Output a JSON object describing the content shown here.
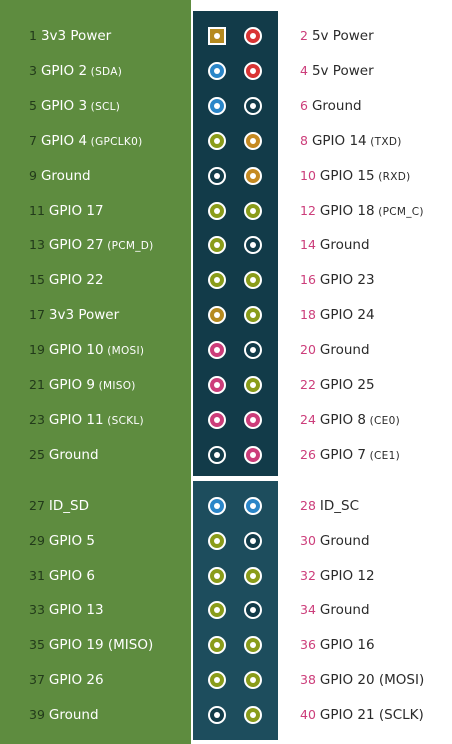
{
  "colors": {
    "power3v3": "#b58a1f",
    "power5v": "#d93434",
    "ground": "#123b49",
    "gpio": "#8a9c1a",
    "i2c": "#2b86c8",
    "spi": "#cc3d7a",
    "uart": "#c58a22",
    "idsd": "#2b86c8"
  },
  "pins": [
    {
      "num": "1",
      "name": "3v3 Power",
      "sub": "",
      "type": "power3v3",
      "side": "left",
      "row": 0,
      "square": true
    },
    {
      "num": "2",
      "name": "5v Power",
      "sub": "",
      "type": "power5v",
      "side": "right",
      "row": 0
    },
    {
      "num": "3",
      "name": "GPIO 2",
      "sub": "(SDA)",
      "type": "i2c",
      "side": "left",
      "row": 1
    },
    {
      "num": "4",
      "name": "5v Power",
      "sub": "",
      "type": "power5v",
      "side": "right",
      "row": 1
    },
    {
      "num": "5",
      "name": "GPIO 3",
      "sub": "(SCL)",
      "type": "i2c",
      "side": "left",
      "row": 2
    },
    {
      "num": "6",
      "name": "Ground",
      "sub": "",
      "type": "ground",
      "side": "right",
      "row": 2
    },
    {
      "num": "7",
      "name": "GPIO 4",
      "sub": "(GPCLK0)",
      "type": "gpio",
      "side": "left",
      "row": 3
    },
    {
      "num": "8",
      "name": "GPIO 14",
      "sub": "(TXD)",
      "type": "uart",
      "side": "right",
      "row": 3
    },
    {
      "num": "9",
      "name": "Ground",
      "sub": "",
      "type": "ground",
      "side": "left",
      "row": 4
    },
    {
      "num": "10",
      "name": "GPIO 15",
      "sub": "(RXD)",
      "type": "uart",
      "side": "right",
      "row": 4
    },
    {
      "num": "11",
      "name": "GPIO 17",
      "sub": "",
      "type": "gpio",
      "side": "left",
      "row": 5
    },
    {
      "num": "12",
      "name": "GPIO 18",
      "sub": "(PCM_C)",
      "type": "gpio",
      "side": "right",
      "row": 5
    },
    {
      "num": "13",
      "name": "GPIO 27",
      "sub": "(PCM_D)",
      "type": "gpio",
      "side": "left",
      "row": 6
    },
    {
      "num": "14",
      "name": "Ground",
      "sub": "",
      "type": "ground",
      "side": "right",
      "row": 6
    },
    {
      "num": "15",
      "name": "GPIO 22",
      "sub": "",
      "type": "gpio",
      "side": "left",
      "row": 7
    },
    {
      "num": "16",
      "name": "GPIO 23",
      "sub": "",
      "type": "gpio",
      "side": "right",
      "row": 7
    },
    {
      "num": "17",
      "name": "3v3 Power",
      "sub": "",
      "type": "power3v3",
      "side": "left",
      "row": 8
    },
    {
      "num": "18",
      "name": "GPIO 24",
      "sub": "",
      "type": "gpio",
      "side": "right",
      "row": 8
    },
    {
      "num": "19",
      "name": "GPIO 10",
      "sub": "(MOSI)",
      "type": "spi",
      "side": "left",
      "row": 9
    },
    {
      "num": "20",
      "name": "Ground",
      "sub": "",
      "type": "ground",
      "side": "right",
      "row": 9
    },
    {
      "num": "21",
      "name": "GPIO 9",
      "sub": "(MISO)",
      "type": "spi",
      "side": "left",
      "row": 10
    },
    {
      "num": "22",
      "name": "GPIO 25",
      "sub": "",
      "type": "gpio",
      "side": "right",
      "row": 10
    },
    {
      "num": "23",
      "name": "GPIO 11",
      "sub": "(SCKL)",
      "type": "spi",
      "side": "left",
      "row": 11
    },
    {
      "num": "24",
      "name": "GPIO 8",
      "sub": "(CE0)",
      "type": "spi",
      "side": "right",
      "row": 11
    },
    {
      "num": "25",
      "name": "Ground",
      "sub": "",
      "type": "ground",
      "side": "left",
      "row": 12
    },
    {
      "num": "26",
      "name": "GPIO 7",
      "sub": "(CE1)",
      "type": "spi",
      "side": "right",
      "row": 12
    },
    {
      "num": "27",
      "name": "ID_SD",
      "sub": "",
      "type": "idsd",
      "side": "left",
      "row": 13
    },
    {
      "num": "28",
      "name": "ID_SC",
      "sub": "",
      "type": "idsd",
      "side": "right",
      "row": 13
    },
    {
      "num": "29",
      "name": "GPIO 5",
      "sub": "",
      "type": "gpio",
      "side": "left",
      "row": 14
    },
    {
      "num": "30",
      "name": "Ground",
      "sub": "",
      "type": "ground",
      "side": "right",
      "row": 14
    },
    {
      "num": "31",
      "name": "GPIO 6",
      "sub": "",
      "type": "gpio",
      "side": "left",
      "row": 15
    },
    {
      "num": "32",
      "name": "GPIO 12",
      "sub": "",
      "type": "gpio",
      "side": "right",
      "row": 15
    },
    {
      "num": "33",
      "name": "GPIO 13",
      "sub": "",
      "type": "gpio",
      "side": "left",
      "row": 16
    },
    {
      "num": "34",
      "name": "Ground",
      "sub": "",
      "type": "ground",
      "side": "right",
      "row": 16
    },
    {
      "num": "35",
      "name": "GPIO 19 (MISO)",
      "sub": "",
      "type": "gpio",
      "side": "left",
      "row": 17
    },
    {
      "num": "36",
      "name": "GPIO 16",
      "sub": "",
      "type": "gpio",
      "side": "right",
      "row": 17
    },
    {
      "num": "37",
      "name": "GPIO 26",
      "sub": "",
      "type": "gpio",
      "side": "left",
      "row": 18
    },
    {
      "num": "38",
      "name": "GPIO 20 (MOSI)",
      "sub": "",
      "type": "gpio",
      "side": "right",
      "row": 18
    },
    {
      "num": "39",
      "name": "Ground",
      "sub": "",
      "type": "ground",
      "side": "left",
      "row": 19
    },
    {
      "num": "40",
      "name": "GPIO 21 (SCLK)",
      "sub": "",
      "type": "gpio",
      "side": "right",
      "row": 19
    }
  ]
}
